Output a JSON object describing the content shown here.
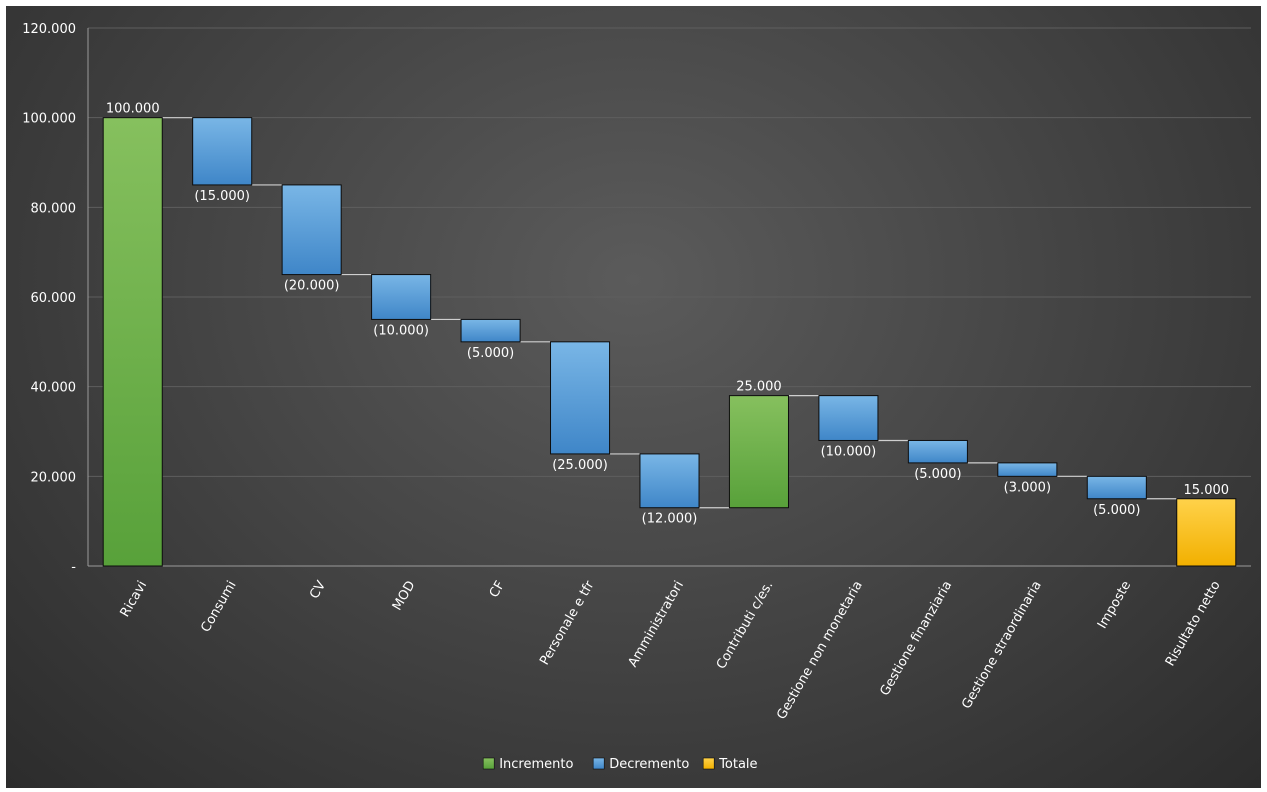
{
  "chart_data": {
    "type": "bar",
    "subtype": "waterfall",
    "categories": [
      "Ricavi",
      "Consumi",
      "CV",
      "MOD",
      "CF",
      "Personale e tfr",
      "Amministratori",
      "Contributi c/es.",
      "Gestione non monetaria",
      "Gestione finanziaria",
      "Gestione straordinaria",
      "Imposte",
      "Risultato netto"
    ],
    "values": [
      100000,
      -15000,
      -20000,
      -10000,
      -5000,
      -25000,
      -12000,
      25000,
      -10000,
      -5000,
      -3000,
      -5000,
      15000
    ],
    "kinds": [
      "increase",
      "decrease",
      "decrease",
      "decrease",
      "decrease",
      "decrease",
      "decrease",
      "increase",
      "decrease",
      "decrease",
      "decrease",
      "decrease",
      "total"
    ],
    "data_labels": [
      "100.000",
      "(15.000)",
      "(20.000)",
      "(10.000)",
      "(5.000)",
      "(25.000)",
      "(12.000)",
      "25.000",
      "(10.000)",
      "(5.000)",
      "(3.000)",
      "(5.000)",
      "15.000"
    ],
    "ylim": [
      0,
      120000
    ],
    "y_ticks": [
      0,
      20000,
      40000,
      60000,
      80000,
      100000,
      120000
    ],
    "y_tick_labels": [
      "-",
      "20.000",
      "40.000",
      "60.000",
      "80.000",
      "100.000",
      "120.000"
    ],
    "grid": true,
    "legend_position": "bottom",
    "legend": [
      {
        "name": "Incremento",
        "kind": "increase"
      },
      {
        "name": "Decremento",
        "kind": "decrease"
      },
      {
        "name": "Totale",
        "kind": "total"
      }
    ],
    "colors": {
      "increase_top": "#86c05e",
      "increase_bottom": "#58a13a",
      "decrease_top": "#79b6e6",
      "decrease_bottom": "#3f86c8",
      "total_top": "#ffd24a",
      "total_bottom": "#f2b000",
      "outline": "#0d0d0d",
      "connector": "#cfcfcf"
    }
  }
}
